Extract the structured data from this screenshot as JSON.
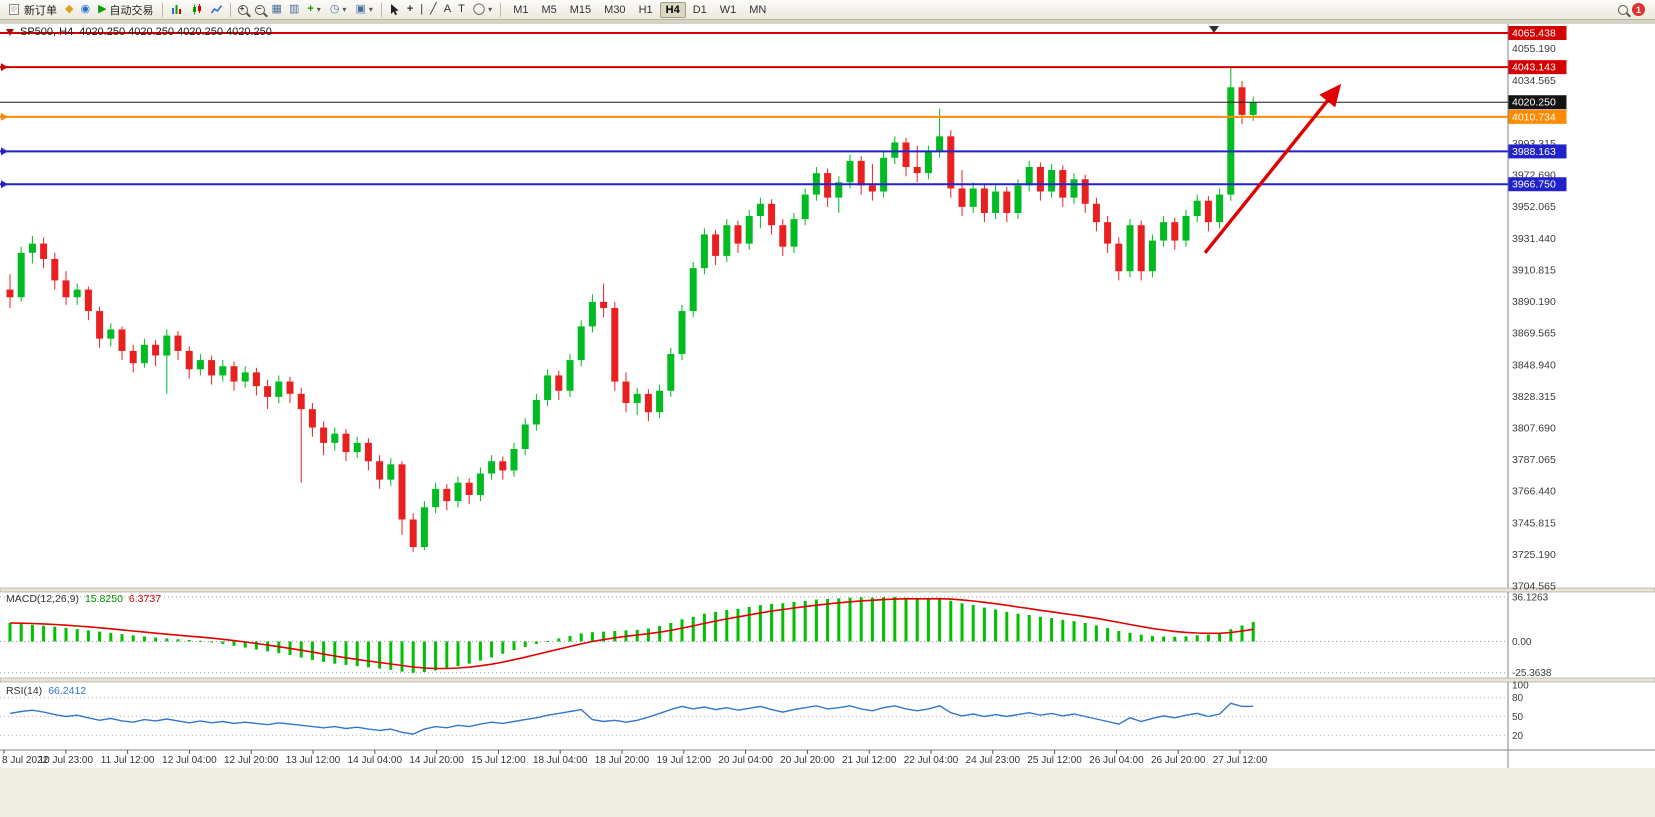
{
  "toolbar": {
    "new_order_label": "新订单",
    "autotrade_label": "自动交易",
    "timeframes": [
      "M1",
      "M5",
      "M15",
      "M30",
      "H1",
      "H4",
      "D1",
      "W1",
      "MN"
    ],
    "active_timeframe": "H4",
    "notification_count": "1",
    "glyphs": {
      "diamond": "◆",
      "dot": "◉",
      "play": "▶",
      "grid": "▦",
      "tile": "▥",
      "plus": "+",
      "clock": "◷",
      "template": "▣",
      "caret": "▾",
      "vline": "|",
      "trendline": "╱",
      "letter_a": "A",
      "letter_t": "T",
      "shapes": "◯",
      "crosshair": "+"
    }
  },
  "chart": {
    "title_symbol": "SP500, H4",
    "title_ohlc": "4020.250 4020.250 4020.250 4020.250"
  },
  "price_axis": {
    "labels": [
      "4055.190",
      "4034.565",
      "3993.315",
      "3972.690",
      "3952.065",
      "3931.440",
      "3910.815",
      "3890.190",
      "3869.565",
      "3848.940",
      "3828.315",
      "3807.690",
      "3787.065",
      "3766.440",
      "3745.815",
      "3725.190",
      "3704.565"
    ],
    "badges": [
      {
        "text": "4065.438",
        "color": "#d40000"
      },
      {
        "text": "4043.143",
        "color": "#d40000"
      },
      {
        "text": "4020.250",
        "color": "#141414"
      },
      {
        "text": "4010.734",
        "color": "#ff8a00"
      },
      {
        "text": "3988.163",
        "color": "#2222cc"
      },
      {
        "text": "3966.750",
        "color": "#2222cc"
      }
    ]
  },
  "hlines": [
    {
      "price": 4065.438,
      "color": "#d40000",
      "width": 2,
      "marker": false
    },
    {
      "price": 4043.143,
      "color": "#d40000",
      "width": 2,
      "marker": true
    },
    {
      "price": 4020.25,
      "color": "#1a1a1a",
      "width": 1,
      "marker": false
    },
    {
      "price": 4010.734,
      "color": "#ff8a00",
      "width": 2,
      "marker": true
    },
    {
      "price": 3988.163,
      "color": "#2222cc",
      "width": 2,
      "marker": true
    },
    {
      "price": 3966.75,
      "color": "#2222cc",
      "width": 2,
      "marker": true
    }
  ],
  "time_axis": {
    "labels": [
      "8 Jul 2022",
      "10 Jul 23:00",
      "11 Jul 12:00",
      "12 Jul 04:00",
      "12 Jul 20:00",
      "13 Jul 12:00",
      "14 Jul 04:00",
      "14 Jul 20:00",
      "15 Jul 12:00",
      "18 Jul 04:00",
      "18 Jul 20:00",
      "19 Jul 12:00",
      "20 Jul 04:00",
      "20 Jul 20:00",
      "21 Jul 12:00",
      "22 Jul 04:00",
      "24 Jul 23:00",
      "25 Jul 12:00",
      "26 Jul 04:00",
      "26 Jul 20:00",
      "27 Jul 12:00"
    ]
  },
  "indicators": {
    "macd": {
      "label": "MACD(12,26,9)",
      "value_main": "15.8250",
      "value_signal": "6.3737",
      "axis": [
        "36.1263",
        "0.00",
        "-25.3638"
      ]
    },
    "rsi": {
      "label": "RSI(14)",
      "value": "66.2412",
      "axis": [
        "100",
        "80",
        "50",
        "20"
      ],
      "levels": [
        80,
        50,
        20
      ]
    }
  },
  "annotations": {
    "arrow": {
      "from_index": 106.7,
      "from_price": 3922,
      "to_index": 118.6,
      "to_price": 4030,
      "color": "#e00000"
    },
    "top_marker_index": 107.5
  },
  "chart_data": {
    "type": "candlestick",
    "symbol": "SP500",
    "timeframe": "H4",
    "ohlc_current": [
      4020.25,
      4020.25,
      4020.25,
      4020.25
    ],
    "price_range": [
      3703.315,
      4065.438
    ],
    "up_color": "#00bb22",
    "down_color": "#e82020",
    "macd_color": "#00c000",
    "macd_signal_color": "#e00000",
    "rsi_color": "#3377cc",
    "candles": [
      [
        3898,
        3908,
        3886,
        3893
      ],
      [
        3893,
        3926,
        3890,
        3922
      ],
      [
        3922,
        3933,
        3915,
        3928
      ],
      [
        3928,
        3932,
        3912,
        3918
      ],
      [
        3918,
        3922,
        3898,
        3904
      ],
      [
        3904,
        3910,
        3888,
        3893
      ],
      [
        3893,
        3902,
        3888,
        3898
      ],
      [
        3898,
        3900,
        3878,
        3884
      ],
      [
        3884,
        3887,
        3860,
        3866
      ],
      [
        3866,
        3876,
        3861,
        3872
      ],
      [
        3872,
        3874,
        3852,
        3858
      ],
      [
        3858,
        3862,
        3844,
        3850
      ],
      [
        3850,
        3866,
        3847,
        3862
      ],
      [
        3862,
        3865,
        3848,
        3855
      ],
      [
        3855,
        3872,
        3830,
        3868
      ],
      [
        3868,
        3871,
        3852,
        3858
      ],
      [
        3858,
        3861,
        3840,
        3846
      ],
      [
        3846,
        3856,
        3842,
        3852
      ],
      [
        3852,
        3855,
        3836,
        3842
      ],
      [
        3842,
        3852,
        3838,
        3848
      ],
      [
        3848,
        3851,
        3832,
        3838
      ],
      [
        3838,
        3848,
        3834,
        3844
      ],
      [
        3844,
        3847,
        3829,
        3835
      ],
      [
        3835,
        3839,
        3820,
        3828
      ],
      [
        3828,
        3842,
        3824,
        3838
      ],
      [
        3838,
        3841,
        3824,
        3830
      ],
      [
        3830,
        3834,
        3772,
        3820
      ],
      [
        3820,
        3824,
        3802,
        3808
      ],
      [
        3808,
        3812,
        3790,
        3798
      ],
      [
        3798,
        3808,
        3793,
        3804
      ],
      [
        3804,
        3807,
        3786,
        3792
      ],
      [
        3792,
        3802,
        3788,
        3798
      ],
      [
        3798,
        3801,
        3780,
        3786
      ],
      [
        3786,
        3790,
        3768,
        3774
      ],
      [
        3774,
        3788,
        3770,
        3784
      ],
      [
        3784,
        3786,
        3738,
        3748
      ],
      [
        3748,
        3752,
        3727,
        3730
      ],
      [
        3730,
        3760,
        3728,
        3756
      ],
      [
        3756,
        3772,
        3752,
        3768
      ],
      [
        3768,
        3771,
        3754,
        3760
      ],
      [
        3760,
        3776,
        3756,
        3772
      ],
      [
        3772,
        3775,
        3758,
        3764
      ],
      [
        3764,
        3782,
        3760,
        3778
      ],
      [
        3778,
        3790,
        3774,
        3786
      ],
      [
        3786,
        3789,
        3774,
        3780
      ],
      [
        3780,
        3798,
        3776,
        3794
      ],
      [
        3794,
        3814,
        3790,
        3810
      ],
      [
        3810,
        3830,
        3806,
        3826
      ],
      [
        3826,
        3846,
        3822,
        3842
      ],
      [
        3842,
        3845,
        3826,
        3832
      ],
      [
        3832,
        3856,
        3828,
        3852
      ],
      [
        3852,
        3878,
        3848,
        3874
      ],
      [
        3874,
        3895,
        3870,
        3890
      ],
      [
        3890,
        3902,
        3880,
        3886
      ],
      [
        3886,
        3890,
        3832,
        3838
      ],
      [
        3838,
        3844,
        3818,
        3824
      ],
      [
        3824,
        3834,
        3816,
        3830
      ],
      [
        3830,
        3833,
        3812,
        3818
      ],
      [
        3818,
        3836,
        3814,
        3832
      ],
      [
        3832,
        3860,
        3828,
        3856
      ],
      [
        3856,
        3888,
        3852,
        3884
      ],
      [
        3884,
        3916,
        3880,
        3912
      ],
      [
        3912,
        3938,
        3908,
        3934
      ],
      [
        3934,
        3937,
        3914,
        3920
      ],
      [
        3920,
        3944,
        3916,
        3940
      ],
      [
        3940,
        3943,
        3922,
        3928
      ],
      [
        3928,
        3950,
        3924,
        3946
      ],
      [
        3946,
        3958,
        3938,
        3954
      ],
      [
        3954,
        3957,
        3934,
        3940
      ],
      [
        3940,
        3944,
        3920,
        3926
      ],
      [
        3926,
        3948,
        3922,
        3944
      ],
      [
        3944,
        3964,
        3940,
        3960
      ],
      [
        3960,
        3978,
        3956,
        3974
      ],
      [
        3974,
        3977,
        3952,
        3958
      ],
      [
        3958,
        3972,
        3948,
        3968
      ],
      [
        3968,
        3986,
        3964,
        3982
      ],
      [
        3982,
        3985,
        3960,
        3966
      ],
      [
        3966,
        3980,
        3956,
        3962
      ],
      [
        3962,
        3988,
        3958,
        3984
      ],
      [
        3984,
        3998,
        3980,
        3994
      ],
      [
        3994,
        3997,
        3972,
        3978
      ],
      [
        3978,
        3992,
        3968,
        3974
      ],
      [
        3974,
        3992,
        3970,
        3988
      ],
      [
        3988,
        4016,
        3984,
        3998
      ],
      [
        3998,
        4002,
        3958,
        3964
      ],
      [
        3964,
        3976,
        3946,
        3952
      ],
      [
        3952,
        3968,
        3948,
        3964
      ],
      [
        3964,
        3967,
        3942,
        3948
      ],
      [
        3948,
        3966,
        3944,
        3962
      ],
      [
        3962,
        3965,
        3942,
        3948
      ],
      [
        3948,
        3970,
        3944,
        3966
      ],
      [
        3966,
        3982,
        3962,
        3978
      ],
      [
        3978,
        3981,
        3956,
        3962
      ],
      [
        3962,
        3980,
        3958,
        3976
      ],
      [
        3976,
        3979,
        3952,
        3958
      ],
      [
        3958,
        3974,
        3954,
        3970
      ],
      [
        3970,
        3973,
        3948,
        3954
      ],
      [
        3954,
        3958,
        3936,
        3942
      ],
      [
        3942,
        3946,
        3922,
        3928
      ],
      [
        3928,
        3932,
        3904,
        3910
      ],
      [
        3910,
        3944,
        3906,
        3940
      ],
      [
        3940,
        3943,
        3904,
        3910
      ],
      [
        3910,
        3934,
        3906,
        3930
      ],
      [
        3930,
        3946,
        3926,
        3942
      ],
      [
        3942,
        3945,
        3924,
        3930
      ],
      [
        3930,
        3950,
        3926,
        3946
      ],
      [
        3946,
        3960,
        3942,
        3956
      ],
      [
        3956,
        3959,
        3936,
        3942
      ],
      [
        3942,
        3964,
        3938,
        3960
      ],
      [
        3960,
        4043,
        3956,
        4030
      ],
      [
        4030,
        4034,
        4006,
        4012
      ],
      [
        4012,
        4024,
        4008,
        4020.25
      ]
    ],
    "macd_histogram": [
      15,
      14.2,
      13.5,
      12.8,
      12,
      11,
      10,
      9,
      8,
      7,
      6,
      5,
      4,
      3.2,
      2.5,
      1.8,
      1.2,
      0.6,
      -0.5,
      -2,
      -3.5,
      -5,
      -6.5,
      -8,
      -9.5,
      -11,
      -13,
      -15,
      -16.5,
      -18,
      -19,
      -20,
      -21,
      -22,
      -23,
      -24.5,
      -25.4,
      -24.8,
      -23.5,
      -22,
      -20,
      -18,
      -15.5,
      -13,
      -10,
      -7,
      -4.5,
      -2,
      0.5,
      2.5,
      4.5,
      6.5,
      7.5,
      8,
      8.5,
      9,
      9.5,
      10.5,
      12.5,
      15,
      18,
      20,
      22.5,
      24,
      25.5,
      26.5,
      28,
      29.5,
      30.5,
      31,
      32,
      33,
      34,
      34.5,
      35,
      35.5,
      35.8,
      35.5,
      36,
      36.1,
      35.5,
      34.8,
      34.5,
      35,
      33,
      31,
      29.5,
      27.5,
      26,
      24,
      22.5,
      21.5,
      20,
      19,
      17.5,
      16.5,
      15,
      13,
      11,
      8.5,
      7,
      5.5,
      4.5,
      4,
      3.8,
      4.2,
      5,
      5.5,
      6.5,
      10,
      13,
      15.8
    ],
    "rsi_values": [
      55,
      58,
      60,
      57,
      53,
      50,
      52,
      48,
      44,
      47,
      43,
      41,
      45,
      43,
      46,
      43,
      40,
      43,
      40,
      42,
      39,
      41,
      39,
      37,
      40,
      38,
      36,
      34,
      32,
      34,
      31,
      33,
      30,
      28,
      30,
      25,
      22,
      30,
      34,
      32,
      36,
      34,
      38,
      41,
      39,
      42,
      45,
      48,
      52,
      55,
      58,
      61,
      45,
      42,
      44,
      41,
      44,
      49,
      55,
      61,
      66,
      62,
      65,
      61,
      64,
      60,
      63,
      66,
      61,
      57,
      61,
      64,
      67,
      62,
      64,
      67,
      62,
      59,
      64,
      67,
      62,
      59,
      62,
      67,
      56,
      51,
      54,
      50,
      53,
      50,
      53,
      56,
      52,
      55,
      51,
      54,
      50,
      46,
      42,
      38,
      48,
      42,
      47,
      51,
      48,
      52,
      55,
      50,
      54,
      71,
      66,
      66.24
    ]
  }
}
